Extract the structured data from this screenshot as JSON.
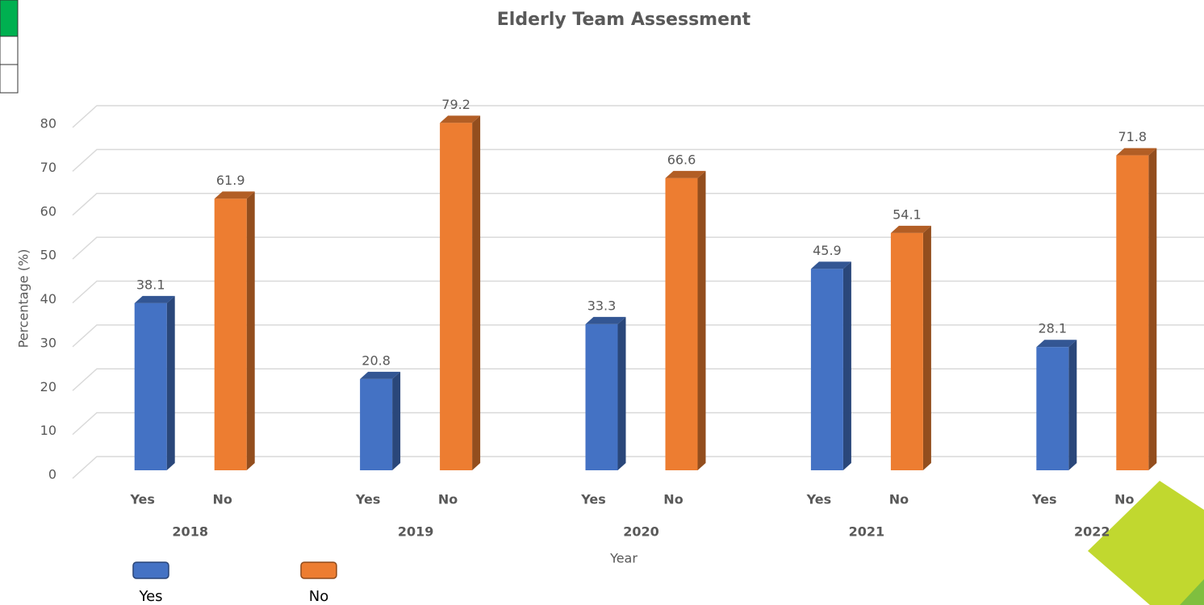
{
  "chart_data": {
    "type": "bar3d",
    "title": "Elderly Team Assessment",
    "x_label": "Year",
    "y_label": "Percentage (%)",
    "categories": [
      "2018",
      "2019",
      "2020",
      "2021",
      "2022"
    ],
    "series": [
      {
        "name": "Yes",
        "color": "#4472c4",
        "values": [
          38.1,
          20.8,
          33.3,
          45.9,
          28.1
        ]
      },
      {
        "name": "No",
        "color": "#ed7d31",
        "values": [
          61.9,
          79.2,
          66.6,
          54.1,
          71.8
        ]
      }
    ],
    "ylim": [
      0,
      80
    ],
    "yticks": [
      0,
      10,
      20,
      30,
      40,
      50,
      60,
      70,
      80
    ],
    "grid": true,
    "legend": "bottom-left"
  }
}
